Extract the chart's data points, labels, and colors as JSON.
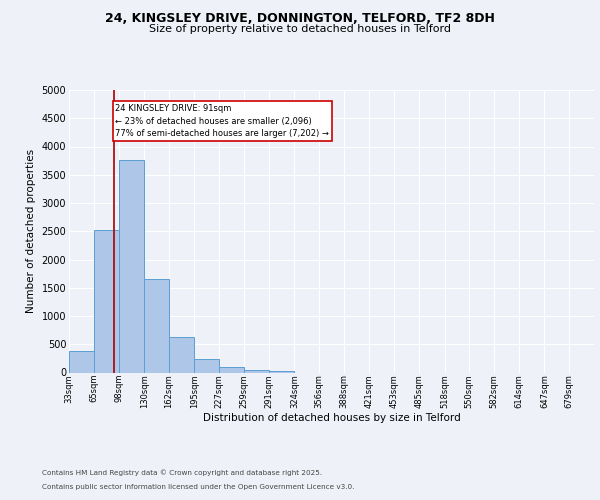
{
  "title1": "24, KINGSLEY DRIVE, DONNINGTON, TELFORD, TF2 8DH",
  "title2": "Size of property relative to detached houses in Telford",
  "xlabel": "Distribution of detached houses by size in Telford",
  "ylabel": "Number of detached properties",
  "bin_labels": [
    "33sqm",
    "65sqm",
    "98sqm",
    "130sqm",
    "162sqm",
    "195sqm",
    "227sqm",
    "259sqm",
    "291sqm",
    "324sqm",
    "356sqm",
    "388sqm",
    "421sqm",
    "453sqm",
    "485sqm",
    "518sqm",
    "550sqm",
    "582sqm",
    "614sqm",
    "647sqm",
    "679sqm"
  ],
  "bin_edges": [
    33,
    65,
    98,
    130,
    162,
    195,
    227,
    259,
    291,
    324,
    356,
    388,
    421,
    453,
    485,
    518,
    550,
    582,
    614,
    647,
    679,
    711
  ],
  "bar_heights": [
    380,
    2530,
    3760,
    1660,
    630,
    240,
    100,
    45,
    35,
    0,
    0,
    0,
    0,
    0,
    0,
    0,
    0,
    0,
    0,
    0,
    0
  ],
  "bar_color": "#aec6e8",
  "bar_edge_color": "#5a9fd4",
  "property_size": 91,
  "vline_color": "#aa0000",
  "annotation_text": "24 KINGSLEY DRIVE: 91sqm\n← 23% of detached houses are smaller (2,096)\n77% of semi-detached houses are larger (7,202) →",
  "annotation_box_color": "#ffffff",
  "annotation_box_edge": "#cc0000",
  "ylim": [
    0,
    5000
  ],
  "yticks": [
    0,
    500,
    1000,
    1500,
    2000,
    2500,
    3000,
    3500,
    4000,
    4500,
    5000
  ],
  "footer1": "Contains HM Land Registry data © Crown copyright and database right 2025.",
  "footer2": "Contains public sector information licensed under the Open Government Licence v3.0.",
  "bg_color": "#eef2f8",
  "plot_bg_color": "#eef2f8",
  "grid_color": "#ffffff"
}
